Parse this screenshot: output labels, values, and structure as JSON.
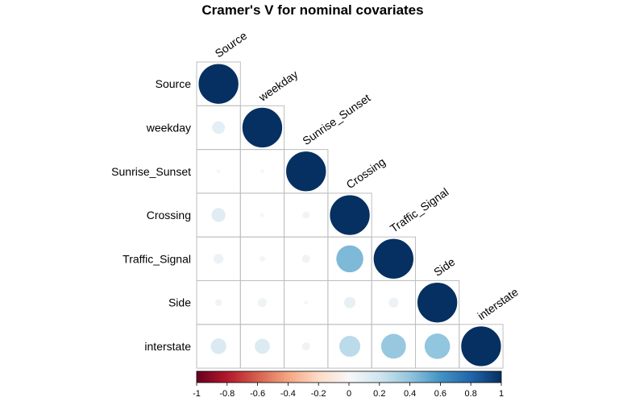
{
  "chart_data": {
    "type": "heatmap",
    "title": "Cramer's V for nominal covariates",
    "variables": [
      "Source",
      "weekday",
      "Sunrise_Sunset",
      "Crossing",
      "Traffic_Signal",
      "Side",
      "interstate"
    ],
    "matrix_lower": [
      [
        1.0
      ],
      [
        0.1,
        1.0
      ],
      [
        0.01,
        0.01,
        1.0
      ],
      [
        0.12,
        0.01,
        0.03,
        1.0
      ],
      [
        0.06,
        0.02,
        0.04,
        0.45,
        1.0
      ],
      [
        0.03,
        0.05,
        0.01,
        0.08,
        0.06,
        1.0
      ],
      [
        0.15,
        0.14,
        0.04,
        0.27,
        0.38,
        0.4,
        1.0
      ]
    ],
    "legend": {
      "ticks": [
        "-1",
        "-0.8",
        "-0.6",
        "-0.4",
        "-0.2",
        "0",
        "0.2",
        "0.4",
        "0.6",
        "0.8",
        "1"
      ],
      "range": [
        -1,
        1
      ]
    },
    "colors": {
      "negative_end": "#67001F",
      "neutral": "#F7F7F7",
      "positive_end": "#053061",
      "grid": "#BEBEBE"
    }
  }
}
